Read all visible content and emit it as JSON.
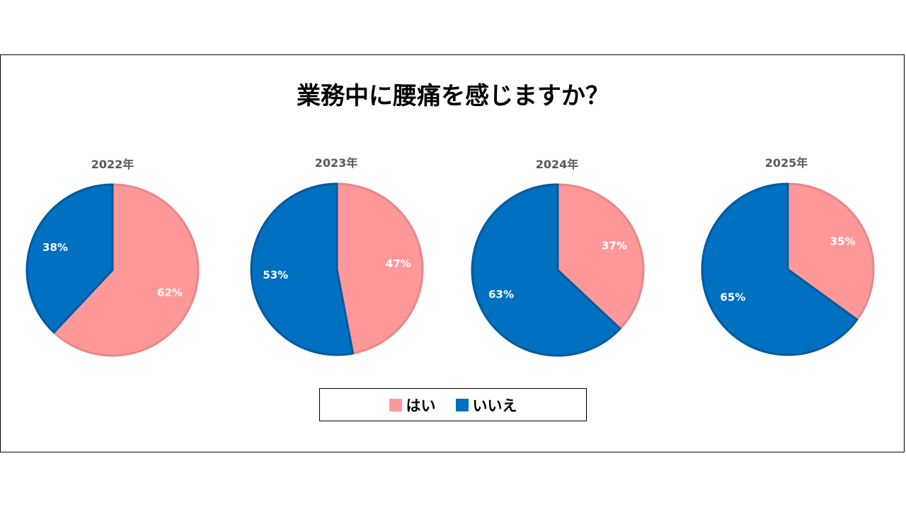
{
  "title": "業務中に腰痛を感じますか？",
  "colors": {
    "yes": "#FF9999",
    "yes_stroke": "#E8868A",
    "no": "#0070C0",
    "no_stroke": "#005A9E"
  },
  "legend": [
    {
      "label": "はい",
      "color": "#FF9999"
    },
    {
      "label": "いいえ",
      "color": "#0070C0"
    }
  ],
  "chart_data": [
    {
      "type": "pie",
      "title": "2022年",
      "categories": [
        "はい",
        "いいえ"
      ],
      "values": [
        62,
        38
      ],
      "labels": [
        "62%",
        "38%"
      ]
    },
    {
      "type": "pie",
      "title": "2023年",
      "categories": [
        "はい",
        "いいえ"
      ],
      "values": [
        47,
        53
      ],
      "labels": [
        "47%",
        "53%"
      ]
    },
    {
      "type": "pie",
      "title": "2024年",
      "categories": [
        "はい",
        "いいえ"
      ],
      "values": [
        37,
        63
      ],
      "labels": [
        "37%",
        "63%"
      ]
    },
    {
      "type": "pie",
      "title": "2025年",
      "categories": [
        "はい",
        "いいえ"
      ],
      "values": [
        35,
        65
      ],
      "labels": [
        "35%",
        "65%"
      ]
    }
  ]
}
